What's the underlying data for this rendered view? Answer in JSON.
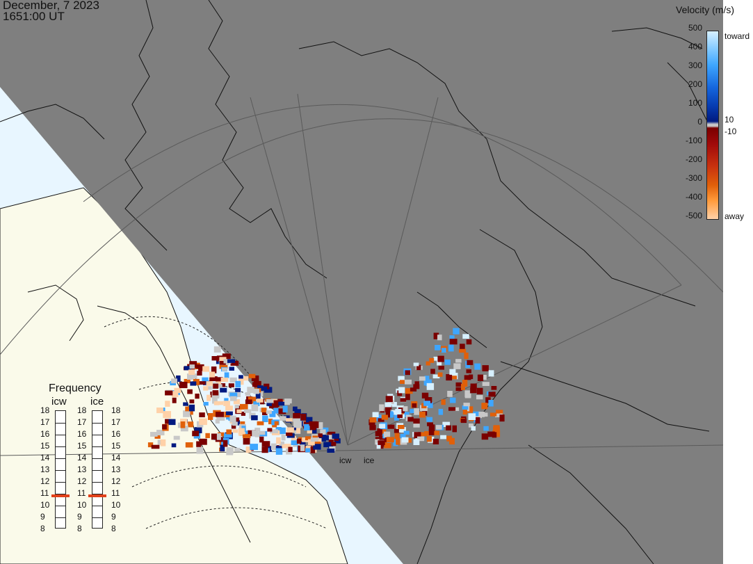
{
  "header": {
    "date": "December, 7 2023",
    "time": "1651:00 UT"
  },
  "legend": {
    "title": "Velocity (m/s)",
    "ticks": [
      "500",
      "400",
      "300",
      "200",
      "100",
      "0",
      "-100",
      "-200",
      "-300",
      "-400",
      "-500"
    ],
    "upper_label": "toward",
    "upper_threshold": "10",
    "lower_threshold": "-10",
    "lower_label": "away",
    "colors": {
      "toward_light": "#d7f0ff",
      "toward_mid": "#3ea6ff",
      "toward_dark": "#001a80",
      "ground_scatter": "#c8c8c8",
      "away_dark": "#7a0000",
      "away_mid": "#e0600a",
      "away_light": "#ffd1a8"
    }
  },
  "frequency": {
    "title": "Frequency",
    "radars": [
      "icw",
      "ice"
    ],
    "levels": [
      "18",
      "17",
      "16",
      "15",
      "14",
      "13",
      "12",
      "11",
      "10",
      "9",
      "8"
    ],
    "selected_mhz": [
      10.8,
      10.8
    ]
  },
  "map": {
    "radar_labels": [
      "icw",
      "ice"
    ],
    "colors": {
      "night": "#7f7f7f",
      "day_land": "#fafaea",
      "day_sea": "#e8f6ff",
      "coast": "#111111"
    }
  }
}
